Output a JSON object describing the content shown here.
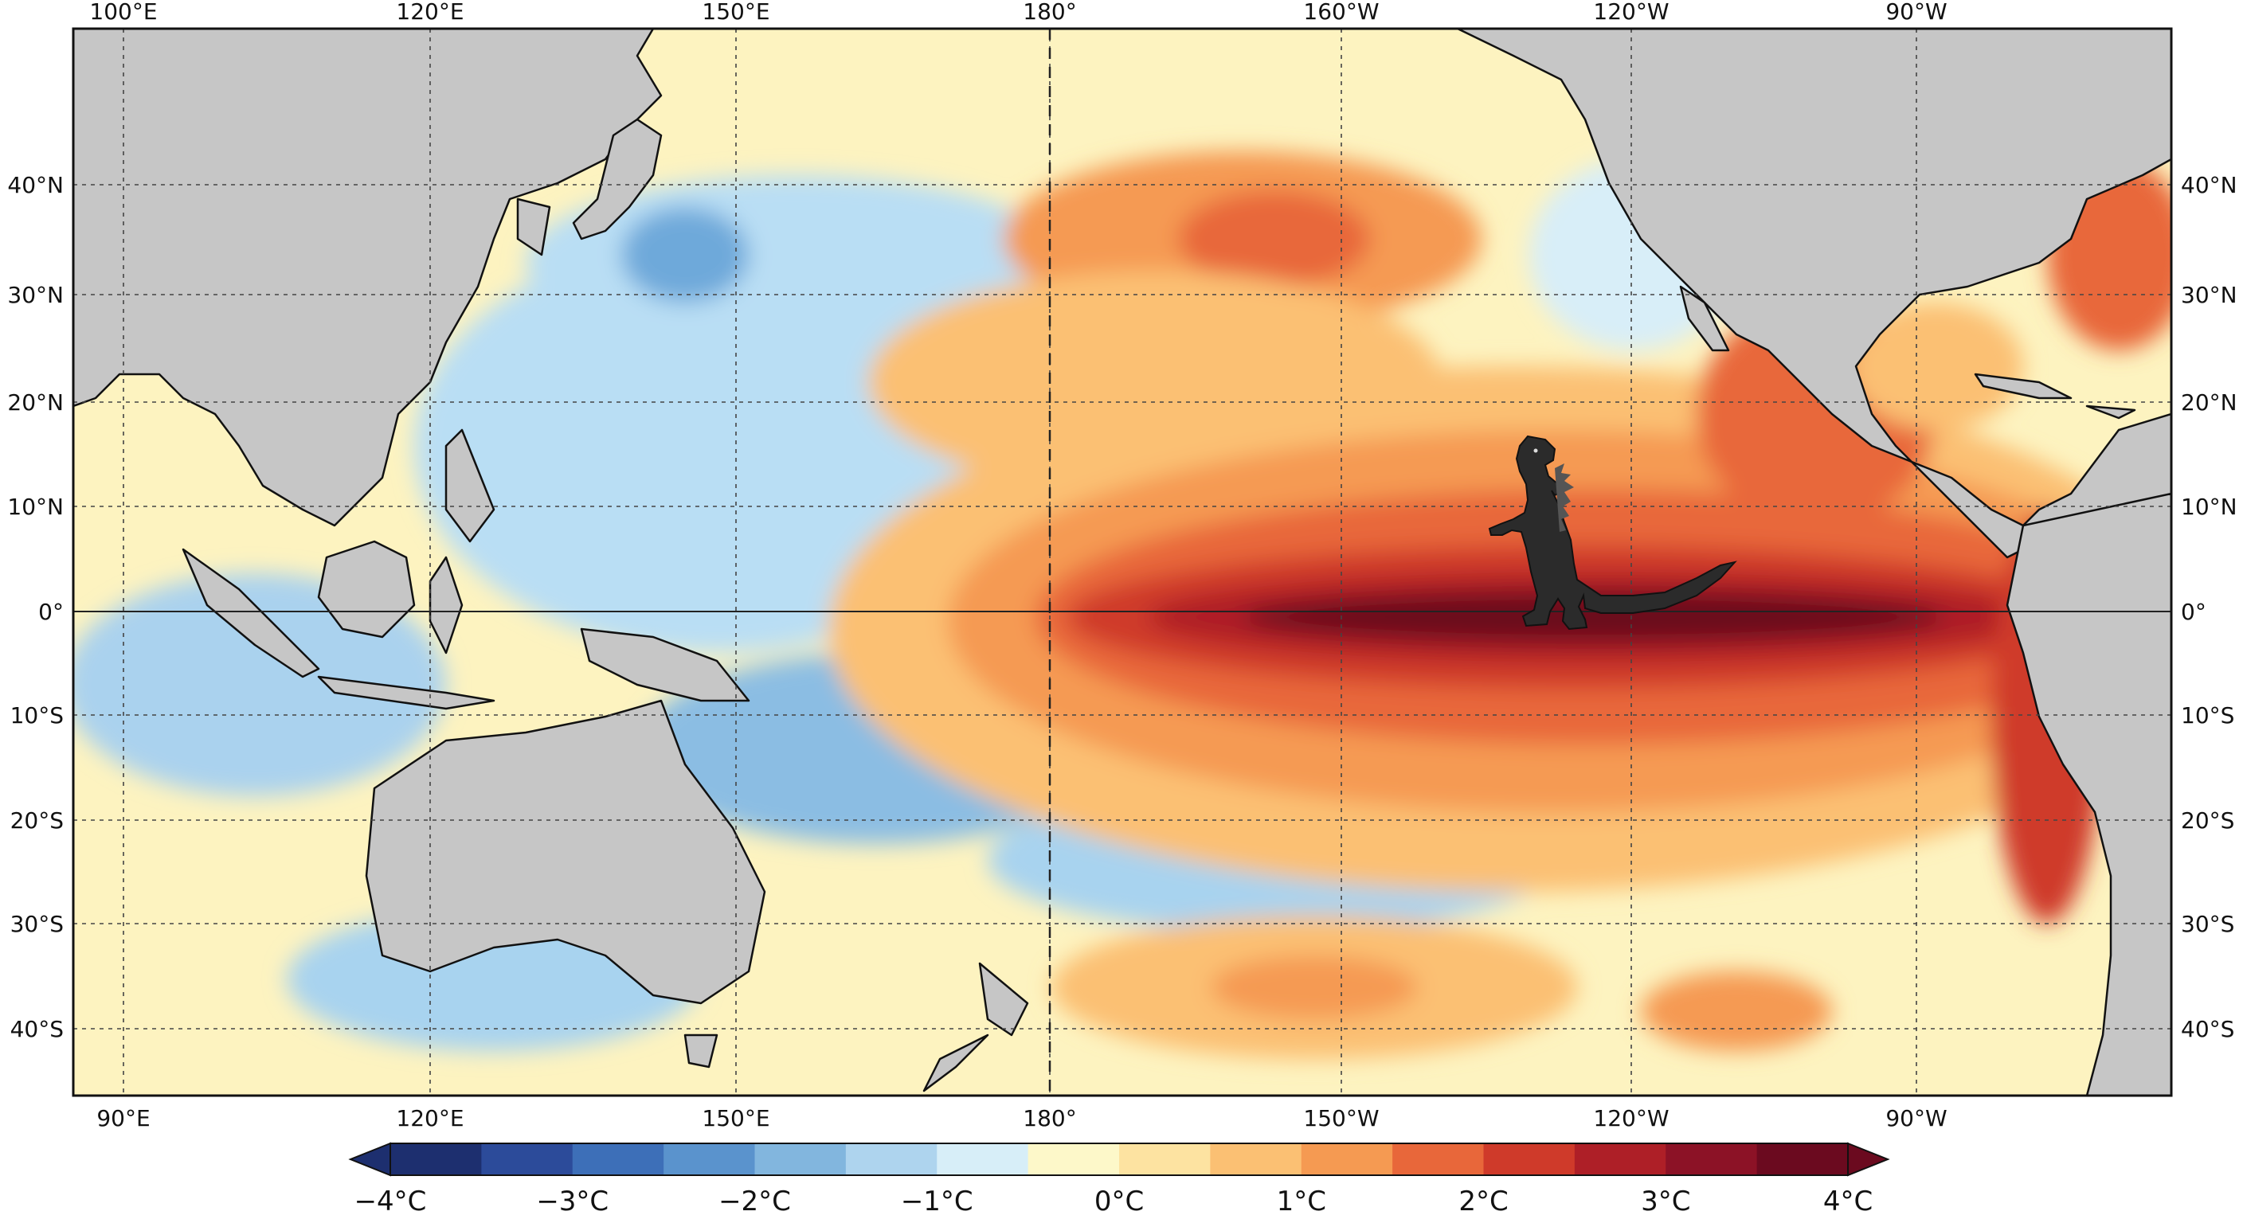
{
  "map": {
    "top_lon_labels": [
      "100°E",
      "120°E",
      "150°E",
      "180°",
      "160°W",
      "120°W",
      "90°W"
    ],
    "bottom_lon_labels": [
      "90°E",
      "120°E",
      "150°E",
      "180°",
      "150°W",
      "120°W",
      "90°W"
    ],
    "lat_labels": [
      "40°N",
      "30°N",
      "20°N",
      "10°N",
      "0°",
      "10°S",
      "20°S",
      "30°S",
      "40°S"
    ],
    "land_color": "#c6c6c6",
    "coastline_color": "#111111",
    "illustration": "godzilla-figure"
  },
  "colorbar": {
    "tick_labels": [
      "−4°C",
      "−3°C",
      "−2°C",
      "−1°C",
      "0°C",
      "1°C",
      "2°C",
      "3°C",
      "4°C"
    ],
    "colors": [
      "#1d2f6f",
      "#2c4b9a",
      "#3d6fb8",
      "#5a93cd",
      "#82b6de",
      "#aed4ee",
      "#d7eef8",
      "#fdf8c9",
      "#fde3a1",
      "#fbc073",
      "#f59a52",
      "#e8673a",
      "#cf3a2a",
      "#ae1f27",
      "#8c1226",
      "#6b0a1f"
    ]
  }
}
